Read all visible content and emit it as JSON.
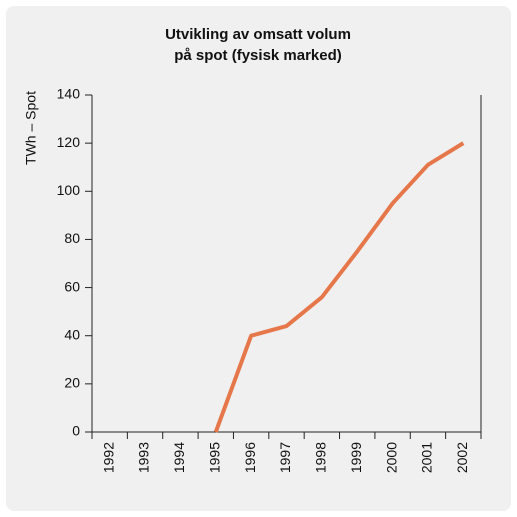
{
  "chart_data": {
    "type": "line",
    "title": [
      "Utvikling av omsatt volum",
      "på spot (fysisk marked)"
    ],
    "y_label": "TWh – Spot",
    "categories": [
      "1992",
      "1993",
      "1994",
      "1995",
      "1996",
      "1997",
      "1998",
      "1999",
      "2000",
      "2001",
      "2002"
    ],
    "values": [
      null,
      null,
      null,
      0,
      40,
      44,
      56,
      75,
      95,
      111,
      120
    ],
    "color": "#e5774a",
    "ylim": [
      0,
      140
    ],
    "yticks": [
      0,
      20,
      40,
      60,
      80,
      100,
      120,
      140
    ],
    "grid": false
  }
}
